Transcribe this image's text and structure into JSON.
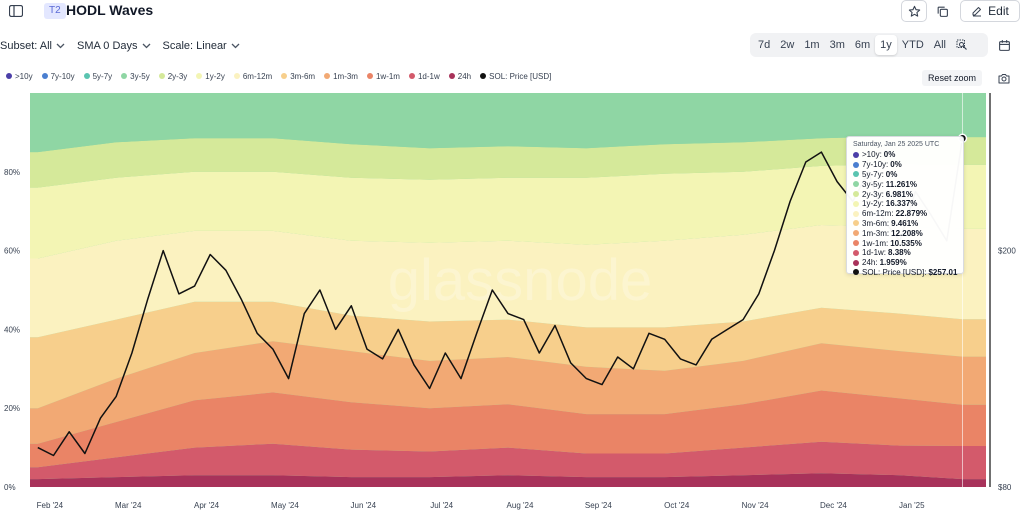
{
  "header": {
    "tier_badge": "T2",
    "title": "HODL Waves",
    "edit_label": "Edit",
    "sidebar_icon": "sidebar-toggle-icon",
    "star_icon": "star-icon",
    "copy_icon": "copy-icon",
    "edit_icon": "pencil-icon"
  },
  "controls": {
    "subset_label": "Subset: All",
    "sma_label": "SMA 0 Days",
    "scale_label": "Scale: Linear",
    "ranges": [
      "7d",
      "2w",
      "1m",
      "3m",
      "6m",
      "1y",
      "YTD",
      "All"
    ],
    "active_range": "1y",
    "zoom_icon": "zoom-select-icon",
    "calendar_icon": "calendar-icon"
  },
  "legend": {
    "items": [
      {
        "label": ">10y",
        "color": "#4b3fa8"
      },
      {
        "label": "7y-10y",
        "color": "#4a7fd0"
      },
      {
        "label": "5y-7y",
        "color": "#5ac4b0"
      },
      {
        "label": "3y-5y",
        "color": "#8fd6a4"
      },
      {
        "label": "2y-3y",
        "color": "#d5e99a"
      },
      {
        "label": "1y-2y",
        "color": "#f3f5b4"
      },
      {
        "label": "6m-12m",
        "color": "#fbf2c0"
      },
      {
        "label": "3m-6m",
        "color": "#f7cf8c"
      },
      {
        "label": "1m-3m",
        "color": "#f2a974"
      },
      {
        "label": "1w-1m",
        "color": "#ea8466"
      },
      {
        "label": "1d-1w",
        "color": "#d35a6b"
      },
      {
        "label": "24h",
        "color": "#a8325a"
      },
      {
        "label": "SOL: Price [USD]",
        "color": "#111111"
      }
    ],
    "reset_zoom_label": "Reset zoom",
    "camera_icon": "camera-icon"
  },
  "watermark": "glassnode",
  "tooltip": {
    "date": "Saturday, Jan 25 2025 UTC",
    "rows": [
      {
        "label": ">10y:",
        "value": "0%",
        "color": "#4b3fa8"
      },
      {
        "label": "7y-10y:",
        "value": "0%",
        "color": "#4a7fd0"
      },
      {
        "label": "5y-7y:",
        "value": "0%",
        "color": "#5ac4b0"
      },
      {
        "label": "3y-5y:",
        "value": "11.261%",
        "color": "#8fd6a4"
      },
      {
        "label": "2y-3y:",
        "value": "6.981%",
        "color": "#d5e99a"
      },
      {
        "label": "1y-2y:",
        "value": "16.337%",
        "color": "#f3f5b4"
      },
      {
        "label": "6m-12m:",
        "value": "22.879%",
        "color": "#fbf2c0"
      },
      {
        "label": "3m-6m:",
        "value": "9.461%",
        "color": "#f7cf8c"
      },
      {
        "label": "1m-3m:",
        "value": "12.208%",
        "color": "#f2a974"
      },
      {
        "label": "1w-1m:",
        "value": "10.535%",
        "color": "#ea8466"
      },
      {
        "label": "1d-1w:",
        "value": "8.38%",
        "color": "#d35a6b"
      },
      {
        "label": "24h:",
        "value": "1.959%",
        "color": "#a8325a"
      },
      {
        "label": "SOL: Price [USD]:",
        "value": "$257.01",
        "color": "#111111"
      }
    ]
  },
  "chart_data": {
    "type": "area",
    "stacked": true,
    "y_unit": "percent",
    "ylim": [
      0,
      100
    ],
    "y_ticks": [
      "0%",
      "20%",
      "40%",
      "60%",
      "80%"
    ],
    "y_tick_values": [
      0,
      20,
      40,
      60,
      80
    ],
    "x_ticks": [
      "Feb '24",
      "Mar '24",
      "Apr '24",
      "May '24",
      "Jun '24",
      "Jul '24",
      "Aug '24",
      "Sep '24",
      "Oct '24",
      "Nov '24",
      "Dec '24",
      "Jan '25"
    ],
    "x_tick_months": [
      0,
      1,
      2,
      3,
      4,
      5,
      6,
      7,
      8,
      9,
      10,
      11
    ],
    "x_range_months": [
      -0.1,
      12.1
    ],
    "x_months": [
      0,
      1,
      2,
      3,
      4,
      5,
      6,
      7,
      8,
      9,
      10,
      11,
      11.8
    ],
    "series": [
      {
        "name": "24h",
        "color": "#a8325a",
        "values": [
          2,
          2.5,
          3,
          3,
          2.5,
          2.5,
          3,
          2.5,
          2.5,
          3,
          3.5,
          3,
          2
        ]
      },
      {
        "name": "1d-1w",
        "color": "#d35a6b",
        "values": [
          3,
          5,
          7,
          8,
          7,
          6.5,
          7,
          6,
          6,
          7,
          8,
          7.5,
          8.4
        ]
      },
      {
        "name": "1w-1m",
        "color": "#ea8466",
        "values": [
          6,
          9,
          12,
          13,
          12,
          11,
          11,
          10,
          10,
          11,
          13,
          12,
          10.5
        ]
      },
      {
        "name": "1m-3m",
        "color": "#f2a974",
        "values": [
          9,
          11,
          12,
          13,
          13,
          12,
          12,
          12,
          11,
          11,
          12,
          12,
          12.2
        ]
      },
      {
        "name": "3m-6m",
        "color": "#f7cf8c",
        "values": [
          18,
          15,
          13,
          10,
          9,
          10,
          9.5,
          10,
          11,
          10,
          9,
          9.5,
          9.5
        ]
      },
      {
        "name": "6m-12m",
        "color": "#fbf2c0",
        "values": [
          20,
          20,
          18,
          18,
          19,
          20,
          20,
          21,
          22,
          22,
          21,
          22,
          22.9
        ]
      },
      {
        "name": "1y-2y",
        "color": "#f3f5b4",
        "values": [
          18,
          16,
          15,
          15,
          16,
          16,
          16,
          17,
          17,
          16,
          15,
          16,
          16.3
        ]
      },
      {
        "name": "2y-3y",
        "color": "#d5e99a",
        "values": [
          9,
          9,
          8.5,
          8.5,
          8.5,
          8,
          8,
          7.5,
          7.5,
          7.5,
          7,
          7,
          7
        ]
      },
      {
        "name": "3y-5y",
        "color": "#8fd6a4",
        "values": [
          15,
          12.5,
          11.5,
          11.5,
          13,
          14,
          13.5,
          14,
          13,
          12.5,
          11.5,
          11,
          11.3
        ]
      },
      {
        "name": ">10y",
        "color": "#4b3fa8",
        "values": [
          0,
          0,
          0,
          0,
          0,
          0,
          0,
          0,
          0,
          0,
          0,
          0,
          0
        ]
      },
      {
        "name": "7y-10y",
        "color": "#4a7fd0",
        "values": [
          0,
          0,
          0,
          0,
          0,
          0,
          0,
          0,
          0,
          0,
          0,
          0,
          0
        ]
      },
      {
        "name": "5y-7y",
        "color": "#5ac4b0",
        "values": [
          0,
          0,
          0,
          0,
          0,
          0,
          0,
          0,
          0,
          0,
          0,
          0,
          0
        ]
      }
    ],
    "price_series": {
      "name": "SOL: Price [USD]",
      "color": "#111111",
      "axis": "right",
      "y2_ticks": [
        "$80",
        "$200"
      ],
      "y2_tick_values": [
        80,
        200
      ],
      "y2_range": [
        80,
        280
      ],
      "months": [
        0,
        0.2,
        0.4,
        0.6,
        0.8,
        1.0,
        1.2,
        1.4,
        1.6,
        1.8,
        2.0,
        2.2,
        2.4,
        2.6,
        2.8,
        3.0,
        3.2,
        3.4,
        3.6,
        3.8,
        4.0,
        4.2,
        4.4,
        4.6,
        4.8,
        5.0,
        5.2,
        5.4,
        5.6,
        5.8,
        6.0,
        6.2,
        6.4,
        6.6,
        6.8,
        7.0,
        7.2,
        7.4,
        7.6,
        7.8,
        8.0,
        8.2,
        8.4,
        8.6,
        8.8,
        9.0,
        9.2,
        9.4,
        9.6,
        9.8,
        10.0,
        10.2,
        10.4,
        10.6,
        10.8,
        11.0,
        11.2,
        11.4,
        11.6,
        11.8
      ],
      "values": [
        100,
        96,
        108,
        97,
        115,
        126,
        148,
        175,
        200,
        178,
        182,
        198,
        190,
        175,
        158,
        150,
        135,
        168,
        180,
        160,
        172,
        150,
        145,
        160,
        142,
        130,
        148,
        135,
        158,
        180,
        168,
        165,
        148,
        162,
        143,
        135,
        132,
        146,
        140,
        158,
        155,
        145,
        142,
        155,
        160,
        165,
        178,
        200,
        225,
        245,
        250,
        235,
        225,
        240,
        215,
        205,
        230,
        218,
        205,
        257
      ]
    }
  }
}
